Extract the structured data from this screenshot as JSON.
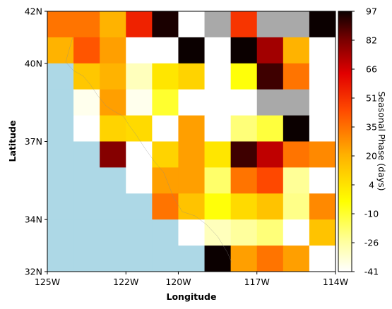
{
  "chart_data": {
    "type": "heatmap",
    "xlabel": "Longitude",
    "ylabel": "Latitude",
    "xlim": [
      -125,
      -114
    ],
    "ylim": [
      32,
      42
    ],
    "x_ticks": [
      {
        "value": -125,
        "label": "125W"
      },
      {
        "value": -122,
        "label": "122W"
      },
      {
        "value": -120,
        "label": "120W"
      },
      {
        "value": -117,
        "label": "117W"
      },
      {
        "value": -114,
        "label": "114W"
      }
    ],
    "y_ticks": [
      {
        "value": 32,
        "label": "32N"
      },
      {
        "value": 34,
        "label": "34N"
      },
      {
        "value": 37,
        "label": "37N"
      },
      {
        "value": 40,
        "label": "40N"
      },
      {
        "value": 42,
        "label": "42N"
      }
    ],
    "colorbar": {
      "label": "Seasonal Phase (days)",
      "range": [
        -41,
        97
      ],
      "colormap": "hot_r",
      "ticks": [
        97,
        82,
        66,
        51,
        35,
        20,
        4,
        -10,
        -26,
        -41
      ]
    },
    "grid": {
      "lon_edges": [
        -125,
        -124,
        -123,
        -122,
        -121,
        -120,
        -119,
        -118,
        -117,
        -116,
        -115,
        -114
      ],
      "lat_edges": [
        42,
        41,
        40,
        39,
        38,
        37,
        36,
        35,
        34,
        33,
        32
      ],
      "values": [
        [
          35,
          35,
          20,
          55,
          95,
          "nan",
          "nodata",
          50,
          "nodata",
          "nodata",
          97
        ],
        [
          20,
          42,
          25,
          "nan",
          "nan",
          97,
          "nan",
          97,
          75,
          20,
          "nan"
        ],
        [
          "ocean",
          14,
          20,
          -30,
          4,
          10,
          "nan",
          -5,
          90,
          35,
          "nan"
        ],
        [
          "ocean",
          -38,
          25,
          -38,
          -10,
          "nan",
          "nan",
          "nan",
          "nodata",
          "nodata",
          "nan"
        ],
        [
          "ocean",
          "nan",
          10,
          8,
          "nan",
          25,
          "nan",
          -20,
          -12,
          97,
          "nan"
        ],
        [
          "ocean",
          "ocean",
          80,
          "nan",
          10,
          25,
          4,
          90,
          70,
          35,
          30
        ],
        [
          "ocean",
          "ocean",
          "ocean",
          "nan",
          25,
          25,
          -18,
          35,
          45,
          -24,
          "nan"
        ],
        [
          "ocean",
          "ocean",
          "ocean",
          "ocean",
          35,
          15,
          -5,
          8,
          15,
          -22,
          30
        ],
        [
          "ocean",
          "ocean",
          "ocean",
          "ocean",
          "ocean",
          "nan",
          -30,
          -25,
          -20,
          "nan",
          15
        ],
        [
          "ocean",
          "ocean",
          "ocean",
          "ocean",
          "ocean",
          "ocean",
          97,
          25,
          35,
          25,
          "nan"
        ]
      ]
    }
  },
  "colors": {
    "ocean": "#add8e6",
    "nodata": "#a9a9a9",
    "nan": "#ffffff",
    "coastline": "#888888"
  }
}
